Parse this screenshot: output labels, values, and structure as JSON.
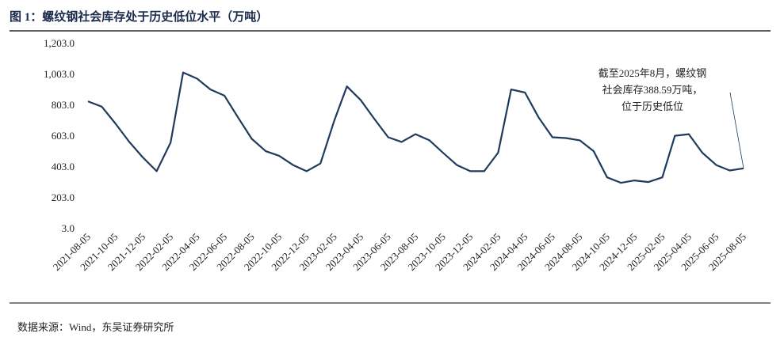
{
  "chart_data": {
    "type": "line",
    "title": "图 1：螺纹钢社会库存处于历史低位水平（万吨）",
    "source": "数据来源：Wind，东吴证券研究所",
    "annotation": [
      "截至2025年8月，螺纹钢",
      "社会库存388.59万吨，",
      "位于历史低位"
    ],
    "x": [
      "2021-08-05",
      "2021-09-05",
      "2021-10-05",
      "2021-11-05",
      "2021-12-05",
      "2022-01-05",
      "2022-02-05",
      "2022-03-05",
      "2022-04-05",
      "2022-05-05",
      "2022-06-05",
      "2022-07-05",
      "2022-08-05",
      "2022-09-05",
      "2022-10-05",
      "2022-11-05",
      "2022-12-05",
      "2023-01-05",
      "2023-02-05",
      "2023-03-05",
      "2023-04-05",
      "2023-05-05",
      "2023-06-05",
      "2023-07-05",
      "2023-08-05",
      "2023-09-05",
      "2023-10-05",
      "2023-11-05",
      "2023-12-05",
      "2024-01-05",
      "2024-02-05",
      "2024-03-05",
      "2024-04-05",
      "2024-05-05",
      "2024-06-05",
      "2024-07-05",
      "2024-08-05",
      "2024-09-05",
      "2024-10-05",
      "2024-11-05",
      "2024-12-05",
      "2025-01-05",
      "2025-02-05",
      "2025-03-05",
      "2025-04-05",
      "2025-05-05",
      "2025-06-05",
      "2025-07-05",
      "2025-08-05"
    ],
    "series": [
      {
        "name": "螺纹钢社会库存",
        "color": "#1f3b5c",
        "values": [
          823,
          788,
          680,
          560,
          460,
          370,
          556,
          1010,
          970,
          900,
          860,
          720,
          580,
          500,
          470,
          410,
          370,
          420,
          700,
          920,
          830,
          710,
          590,
          560,
          610,
          570,
          490,
          410,
          370,
          370,
          490,
          900,
          880,
          720,
          590,
          585,
          570,
          500,
          330,
          295,
          310,
          300,
          330,
          600,
          610,
          490,
          410,
          375,
          388.59
        ]
      }
    ],
    "xlim": [
      "2021-08-05",
      "2025-08-05"
    ],
    "xticks": [
      "2021-08-05",
      "2021-10-05",
      "2021-12-05",
      "2022-02-05",
      "2022-04-05",
      "2022-06-05",
      "2022-08-05",
      "2022-10-05",
      "2022-12-05",
      "2023-02-05",
      "2023-04-05",
      "2023-06-05",
      "2023-08-05",
      "2023-10-05",
      "2023-12-05",
      "2024-02-05",
      "2024-04-05",
      "2024-06-05",
      "2024-08-05",
      "2024-10-05",
      "2024-12-05",
      "2025-02-05",
      "2025-04-05",
      "2025-06-05",
      "2025-08-05"
    ],
    "ylim": [
      3,
      1203
    ],
    "yticks": [
      {
        "value": 3,
        "label": "3.0"
      },
      {
        "value": 203,
        "label": "203.0"
      },
      {
        "value": 403,
        "label": "403.0"
      },
      {
        "value": 603,
        "label": "603.0"
      },
      {
        "value": 803,
        "label": "803.0"
      },
      {
        "value": 1003,
        "label": "1,003.0"
      },
      {
        "value": 1203,
        "label": "1,203.0"
      }
    ]
  }
}
